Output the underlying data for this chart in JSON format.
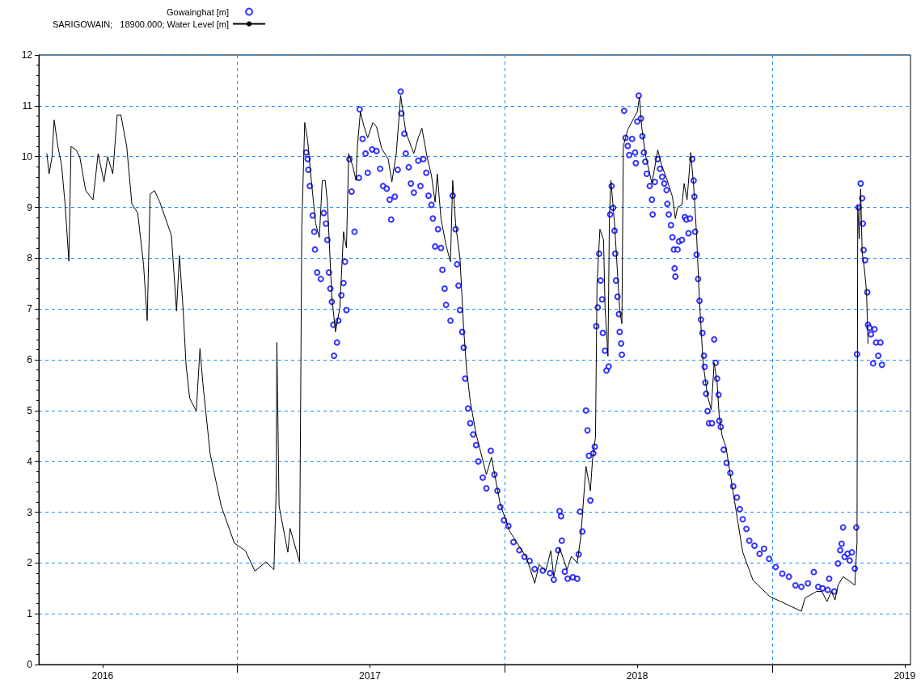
{
  "chart_data": {
    "type": "line",
    "xlim": [
      "2016-04-05",
      "2019-07-09"
    ],
    "xticks": [
      {
        "value": "2016-07-01",
        "label": "2016"
      },
      {
        "value": "2017-01-01",
        "label": null
      },
      {
        "value": "2017-07-01",
        "label": "2017"
      },
      {
        "value": "2018-01-01",
        "label": null
      },
      {
        "value": "2018-07-01",
        "label": "2018"
      },
      {
        "value": "2019-01-01",
        "label": null
      },
      {
        "value": "2019-07-01",
        "label": "2019"
      }
    ],
    "ylim": [
      0,
      12
    ],
    "yticks": [
      0,
      1,
      2,
      3,
      4,
      5,
      6,
      7,
      8,
      9,
      10,
      11,
      12
    ],
    "grid": true,
    "legend": "top left",
    "series": [
      {
        "name": "Gowainghat [m]",
        "type": "scatter",
        "marker": "circle",
        "color": "#0000ff",
        "x": [
          "2017-04-05",
          "2017-04-07",
          "2017-04-08",
          "2017-04-10",
          "2017-04-14",
          "2017-04-16",
          "2017-04-17",
          "2017-04-20",
          "2017-04-25",
          "2017-04-29",
          "2017-05-02",
          "2017-05-04",
          "2017-05-06",
          "2017-05-08",
          "2017-05-10",
          "2017-05-12",
          "2017-05-13",
          "2017-05-17",
          "2017-05-19",
          "2017-05-23",
          "2017-05-26",
          "2017-05-28",
          "2017-05-30",
          "2017-06-03",
          "2017-06-06",
          "2017-06-10",
          "2017-06-16",
          "2017-06-17",
          "2017-06-21",
          "2017-06-25",
          "2017-06-28",
          "2017-07-04",
          "2017-07-10",
          "2017-07-15",
          "2017-07-19",
          "2017-07-24",
          "2017-07-28",
          "2017-07-30",
          "2017-08-04",
          "2017-08-08",
          "2017-08-12",
          "2017-08-13",
          "2017-08-17",
          "2017-08-19",
          "2017-08-23",
          "2017-08-26",
          "2017-08-30",
          "2017-09-05",
          "2017-09-08",
          "2017-09-12",
          "2017-09-16",
          "2017-09-19",
          "2017-09-23",
          "2017-09-25",
          "2017-09-28",
          "2017-10-02",
          "2017-10-06",
          "2017-10-08",
          "2017-10-11",
          "2017-10-13",
          "2017-10-19",
          "2017-10-22",
          "2017-10-26",
          "2017-10-28",
          "2017-10-30",
          "2017-11-01",
          "2017-11-04",
          "2017-11-06",
          "2017-11-08",
          "2017-11-12",
          "2017-11-15",
          "2017-11-19",
          "2017-11-23",
          "2017-11-26",
          "2017-12-02",
          "2017-12-07",
          "2017-12-13",
          "2017-12-18",
          "2017-12-22",
          "2017-12-26",
          "2017-12-31",
          "2018-01-06",
          "2018-01-13",
          "2018-01-21",
          "2018-01-28",
          "2018-02-04",
          "2018-02-11",
          "2018-02-22",
          "2018-03-04",
          "2018-03-09",
          "2018-03-15",
          "2018-03-17",
          "2018-03-19",
          "2018-03-20",
          "2018-03-24",
          "2018-03-28",
          "2018-04-04",
          "2018-04-10",
          "2018-04-12",
          "2018-04-14",
          "2018-04-17",
          "2018-04-22",
          "2018-04-24",
          "2018-04-26",
          "2018-04-28",
          "2018-05-02",
          "2018-05-04",
          "2018-05-06",
          "2018-05-08",
          "2018-05-10",
          "2018-05-12",
          "2018-05-14",
          "2018-05-15",
          "2018-05-18",
          "2018-05-20",
          "2018-05-23",
          "2018-05-25",
          "2018-05-27",
          "2018-05-29",
          "2018-05-31",
          "2018-06-01",
          "2018-06-02",
          "2018-06-04",
          "2018-06-06",
          "2018-06-07",
          "2018-06-09",
          "2018-06-10",
          "2018-06-13",
          "2018-06-15",
          "2018-06-18",
          "2018-06-20",
          "2018-06-24",
          "2018-06-28",
          "2018-06-29",
          "2018-07-01",
          "2018-07-03",
          "2018-07-06",
          "2018-07-08",
          "2018-07-10",
          "2018-07-12",
          "2018-07-14",
          "2018-07-18",
          "2018-07-21",
          "2018-07-22",
          "2018-07-25",
          "2018-07-29",
          "2018-08-01",
          "2018-08-04",
          "2018-08-07",
          "2018-08-10",
          "2018-08-11",
          "2018-08-13",
          "2018-08-16",
          "2018-08-18",
          "2018-08-20",
          "2018-08-21",
          "2018-08-22",
          "2018-08-25",
          "2018-08-27",
          "2018-08-31",
          "2018-09-04",
          "2018-09-06",
          "2018-09-09",
          "2018-09-11",
          "2018-09-14",
          "2018-09-16",
          "2018-09-17",
          "2018-09-18",
          "2018-09-20",
          "2018-09-22",
          "2018-09-24",
          "2018-09-26",
          "2018-09-28",
          "2018-09-30",
          "2018-10-01",
          "2018-10-02",
          "2018-10-03",
          "2018-10-05",
          "2018-10-07",
          "2018-10-11",
          "2018-10-14",
          "2018-10-16",
          "2018-10-18",
          "2018-10-20",
          "2018-10-21",
          "2018-10-23",
          "2018-10-27",
          "2018-10-31",
          "2018-11-05",
          "2018-11-09",
          "2018-11-14",
          "2018-11-18",
          "2018-11-22",
          "2018-11-27",
          "2018-12-01",
          "2018-12-08",
          "2018-12-15",
          "2018-12-21",
          "2018-12-28",
          "2019-01-06",
          "2019-01-15",
          "2019-01-24",
          "2019-02-02",
          "2019-02-10",
          "2019-02-19",
          "2019-02-27",
          "2019-03-05",
          "2019-03-11",
          "2019-03-18",
          "2019-03-20",
          "2019-03-27",
          "2019-04-01",
          "2019-04-04",
          "2019-04-06",
          "2019-04-08",
          "2019-04-10",
          "2019-04-14",
          "2019-04-17",
          "2019-04-20",
          "2019-04-24",
          "2019-04-26",
          "2019-04-27",
          "2019-04-29",
          "2019-05-02",
          "2019-05-04",
          "2019-05-05",
          "2019-05-06",
          "2019-05-08",
          "2019-05-11",
          "2019-05-12",
          "2019-05-14",
          "2019-05-16",
          "2019-05-19",
          "2019-05-21",
          "2019-05-23",
          "2019-05-26",
          "2019-05-29",
          "2019-05-31"
        ],
        "values": [
          10.08,
          9.95,
          9.74,
          9.42,
          8.84,
          8.52,
          8.17,
          7.72,
          7.59,
          8.89,
          8.68,
          8.36,
          7.72,
          7.4,
          7.14,
          6.69,
          6.08,
          6.34,
          6.77,
          7.27,
          7.51,
          7.93,
          6.98,
          9.95,
          9.31,
          8.52,
          9.58,
          10.93,
          10.35,
          10.06,
          9.68,
          10.14,
          10.11,
          9.76,
          9.42,
          9.37,
          9.15,
          8.76,
          9.21,
          9.74,
          11.28,
          10.85,
          10.45,
          10.06,
          9.79,
          9.47,
          9.29,
          9.92,
          9.42,
          9.95,
          9.68,
          9.23,
          9.05,
          8.78,
          8.23,
          8.57,
          8.2,
          7.77,
          7.4,
          7.08,
          6.77,
          9.23,
          8.57,
          7.88,
          7.46,
          6.98,
          6.55,
          6.24,
          5.63,
          5.04,
          4.75,
          4.53,
          4.32,
          4.0,
          3.68,
          3.47,
          4.21,
          3.74,
          3.42,
          3.1,
          2.84,
          2.73,
          2.41,
          2.25,
          2.12,
          2.04,
          1.88,
          1.85,
          1.8,
          1.67,
          2.25,
          3.02,
          2.92,
          2.44,
          1.83,
          1.69,
          1.72,
          1.69,
          2.17,
          3.01,
          2.62,
          5.0,
          4.61,
          4.11,
          3.23,
          4.16,
          4.29,
          6.66,
          7.03,
          8.09,
          7.56,
          7.19,
          6.53,
          6.18,
          5.79,
          5.87,
          8.86,
          9.42,
          8.99,
          8.54,
          8.09,
          7.56,
          7.24,
          6.9,
          6.55,
          6.32,
          6.1,
          10.9,
          10.37,
          10.21,
          10.03,
          10.35,
          10.08,
          9.87,
          10.69,
          11.2,
          10.75,
          10.4,
          10.08,
          9.9,
          9.66,
          9.42,
          9.15,
          8.86,
          9.5,
          9.95,
          9.76,
          9.6,
          9.47,
          9.34,
          9.07,
          8.86,
          8.65,
          8.41,
          8.17,
          7.8,
          7.64,
          8.17,
          8.33,
          8.36,
          8.81,
          8.76,
          8.49,
          8.78,
          9.95,
          9.53,
          9.21,
          8.52,
          8.07,
          7.59,
          7.16,
          6.79,
          6.53,
          6.08,
          5.86,
          5.55,
          5.33,
          4.99,
          4.75,
          4.75,
          6.4,
          5.94,
          5.63,
          5.31,
          4.8,
          4.68,
          4.23,
          3.97,
          3.77,
          3.51,
          3.29,
          3.06,
          2.86,
          2.67,
          2.44,
          2.34,
          2.18,
          2.28,
          2.08,
          1.92,
          1.79,
          1.73,
          1.56,
          1.53,
          1.6,
          1.82,
          1.53,
          1.5,
          1.47,
          1.69,
          1.44,
          1.99,
          2.25,
          2.38,
          2.7,
          2.12,
          2.18,
          2.05,
          2.21,
          1.89,
          2.7,
          6.11,
          9.0,
          9.47,
          9.18,
          8.68,
          8.16,
          7.96,
          7.33,
          6.69,
          6.63,
          6.5,
          5.93,
          6.6,
          6.34,
          6.08,
          6.34,
          5.9
        ]
      },
      {
        "name": "SARIGOWAIN;   18900.000; Water Level [m]",
        "type": "line",
        "marker": "none",
        "line_style": "solid",
        "color": "#000000",
        "x": [
          "2016-04-16",
          "2016-04-19",
          "2016-04-23",
          "2016-04-26",
          "2016-05-01",
          "2016-05-06",
          "2016-05-11",
          "2016-05-16",
          "2016-05-19",
          "2016-05-26",
          "2016-05-31",
          "2016-06-08",
          "2016-06-18",
          "2016-06-25",
          "2016-07-03",
          "2016-07-08",
          "2016-07-15",
          "2016-07-21",
          "2016-07-26",
          "2016-08-03",
          "2016-08-10",
          "2016-08-18",
          "2016-08-26",
          "2016-08-31",
          "2016-09-04",
          "2016-09-10",
          "2016-09-17",
          "2016-10-03",
          "2016-10-10",
          "2016-10-14",
          "2016-10-19",
          "2016-10-23",
          "2016-10-28",
          "2016-11-06",
          "2016-11-11",
          "2016-11-15",
          "2016-11-25",
          "2016-12-10",
          "2016-12-28",
          "2017-01-12",
          "2017-01-25",
          "2017-02-09",
          "2017-02-20",
          "2017-02-23",
          "2017-02-24",
          "2017-02-27",
          "2017-03-11",
          "2017-03-14",
          "2017-03-27",
          "2017-03-30",
          "2017-04-03",
          "2017-04-07",
          "2017-04-12",
          "2017-04-18",
          "2017-04-23",
          "2017-04-27",
          "2017-05-01",
          "2017-05-04",
          "2017-05-10",
          "2017-05-15",
          "2017-05-21",
          "2017-05-26",
          "2017-05-30",
          "2017-06-02",
          "2017-06-08",
          "2017-06-12",
          "2017-06-14",
          "2017-06-18",
          "2017-06-23",
          "2017-06-28",
          "2017-07-05",
          "2017-07-10",
          "2017-07-17",
          "2017-07-26",
          "2017-07-31",
          "2017-08-06",
          "2017-08-12",
          "2017-08-19",
          "2017-08-30",
          "2017-09-05",
          "2017-09-10",
          "2017-09-17",
          "2017-09-23",
          "2017-09-28",
          "2017-10-01",
          "2017-10-06",
          "2017-10-13",
          "2017-10-19",
          "2017-10-22",
          "2017-10-26",
          "2017-11-01",
          "2017-11-06",
          "2017-11-10",
          "2017-11-15",
          "2017-11-23",
          "2017-12-07",
          "2017-12-14",
          "2017-12-26",
          "2018-01-08",
          "2018-01-31",
          "2018-02-11",
          "2018-02-17",
          "2018-02-26",
          "2018-03-05",
          "2018-03-09",
          "2018-03-17",
          "2018-03-27",
          "2018-04-02",
          "2018-04-10",
          "2018-04-15",
          "2018-04-22",
          "2018-04-28",
          "2018-05-01",
          "2018-05-05",
          "2018-05-06",
          "2018-05-07",
          "2018-05-11",
          "2018-05-16",
          "2018-05-18",
          "2018-05-22",
          "2018-05-24",
          "2018-05-26",
          "2018-05-31",
          "2018-06-07",
          "2018-06-10",
          "2018-06-12",
          "2018-06-18",
          "2018-06-26",
          "2018-07-01",
          "2018-07-04",
          "2018-07-07",
          "2018-07-12",
          "2018-07-21",
          "2018-07-29",
          "2018-08-03",
          "2018-08-11",
          "2018-08-18",
          "2018-08-22",
          "2018-08-25",
          "2018-08-31",
          "2018-09-03",
          "2018-09-07",
          "2018-09-12",
          "2018-09-16",
          "2018-09-20",
          "2018-09-24",
          "2018-09-29",
          "2018-10-05",
          "2018-10-10",
          "2018-10-14",
          "2018-10-18",
          "2018-10-21",
          "2018-10-25",
          "2018-10-30",
          "2018-11-09",
          "2018-11-22",
          "2018-12-06",
          "2018-12-29",
          "2019-02-10",
          "2019-02-15",
          "2019-03-03",
          "2019-03-10",
          "2019-03-17",
          "2019-03-23",
          "2019-03-28",
          "2019-04-01",
          "2019-04-08",
          "2019-04-15",
          "2019-04-24",
          "2019-04-27",
          "2019-04-28",
          "2019-04-30",
          "2019-05-02",
          "2019-05-04",
          "2019-05-07",
          "2019-05-10",
          "2019-05-12"
        ],
        "values": [
          10.06,
          9.66,
          9.99,
          10.72,
          10.2,
          9.84,
          9.04,
          7.94,
          10.2,
          10.13,
          9.99,
          9.33,
          9.15,
          10.06,
          9.5,
          10.0,
          9.66,
          10.82,
          10.82,
          10.2,
          9.07,
          8.89,
          7.87,
          6.77,
          9.26,
          9.33,
          9.11,
          8.45,
          6.96,
          8.05,
          6.99,
          5.9,
          5.24,
          4.99,
          6.22,
          5.53,
          4.14,
          3.12,
          2.39,
          2.24,
          1.84,
          2.02,
          1.87,
          3.42,
          6.34,
          3.12,
          2.21,
          2.68,
          2.02,
          8.6,
          10.67,
          10.32,
          9.53,
          8.68,
          8.41,
          9.53,
          9.53,
          9.1,
          7.24,
          6.55,
          7.03,
          8.52,
          8.2,
          10.06,
          9.79,
          9.53,
          10.21,
          10.88,
          10.59,
          10.37,
          10.67,
          10.59,
          10.16,
          9.95,
          9.5,
          10.06,
          11.2,
          10.48,
          10.06,
          10.37,
          10.56,
          10.0,
          9.63,
          9.1,
          9.66,
          8.78,
          8.25,
          7.93,
          9.53,
          8.68,
          7.99,
          6.61,
          5.81,
          5.18,
          4.54,
          3.74,
          4.08,
          3.15,
          2.62,
          2.1,
          1.6,
          1.97,
          1.84,
          2.24,
          1.73,
          2.3,
          1.87,
          2.13,
          2.0,
          2.53,
          3.9,
          3.42,
          4.05,
          4.48,
          5.92,
          7.46,
          8.57,
          8.36,
          7.03,
          6.07,
          8.83,
          9.53,
          8.68,
          6.98,
          6.71,
          10.21,
          10.53,
          10.75,
          10.88,
          11.17,
          10.59,
          10.05,
          9.47,
          10.13,
          9.84,
          9.53,
          9.21,
          8.78,
          9.0,
          9.05,
          9.47,
          9.15,
          10.08,
          9.42,
          8.46,
          7.14,
          5.92,
          5.28,
          5.02,
          5.94,
          5.55,
          4.86,
          4.49,
          4.29,
          3.38,
          2.21,
          1.66,
          1.34,
          1.05,
          1.31,
          1.44,
          1.44,
          1.24,
          1.44,
          1.27,
          1.56,
          1.73,
          1.66,
          1.56,
          2.41,
          9.03,
          8.38,
          9.36,
          8.12,
          7.8,
          7.34,
          6.31
        ]
      }
    ]
  }
}
